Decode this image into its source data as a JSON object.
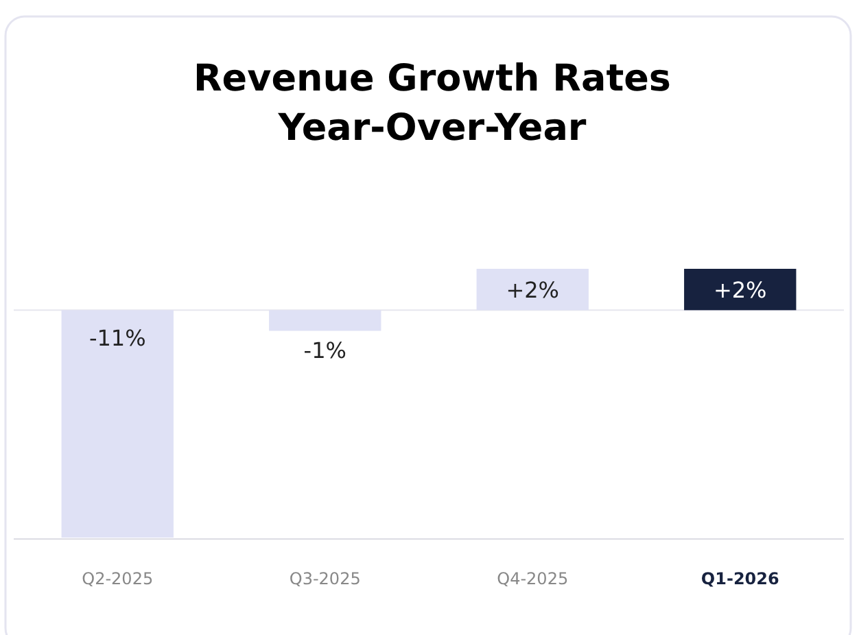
{
  "chart_data": {
    "type": "bar",
    "title": "Revenue Growth Rates\nYear-Over-Year",
    "categories": [
      "Q2-2025",
      "Q3-2025",
      "Q4-2025",
      "Q1-2026"
    ],
    "values": [
      -11,
      -1,
      2,
      2
    ],
    "value_labels": [
      "-11%",
      "-1%",
      "+2%",
      "+2%"
    ],
    "colors": [
      "#dfe1f5",
      "#dfe1f5",
      "#dfe1f5",
      "#17223f"
    ]
  }
}
